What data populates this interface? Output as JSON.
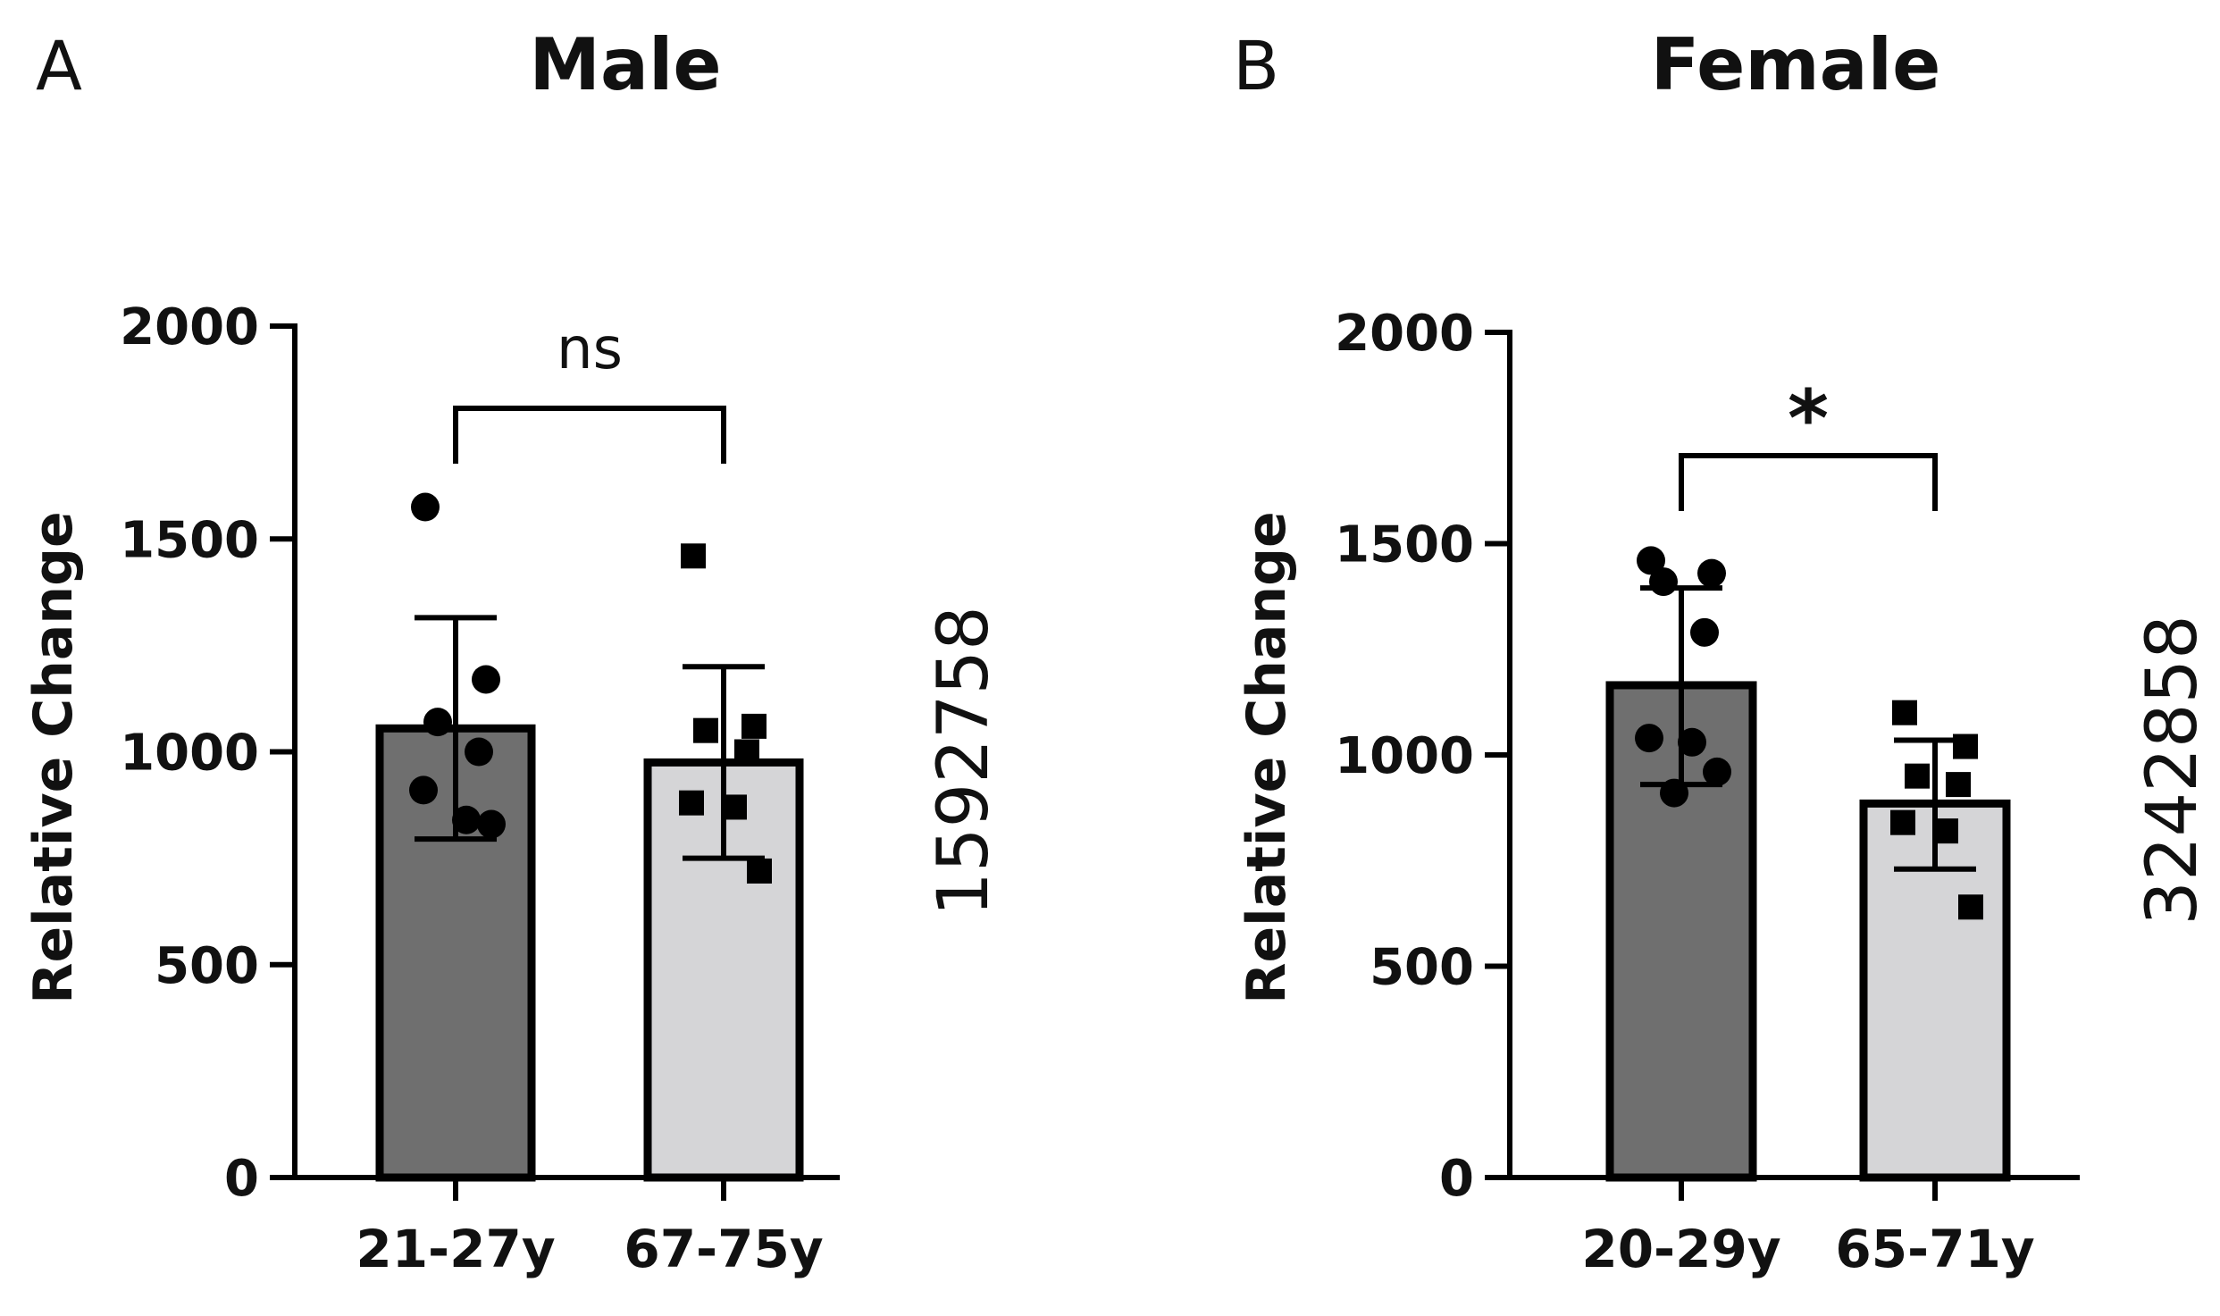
{
  "chart_data": [
    {
      "type": "bar",
      "panel_letter": "A",
      "title": "Male",
      "ylabel": "Relative Change",
      "xlabel": "",
      "ylim": [
        0,
        2000
      ],
      "yticks": [
        "0",
        "500",
        "1000",
        "1500",
        "2000"
      ],
      "categories": [
        "21-27y",
        "67-75y"
      ],
      "values": [
        1055,
        975
      ],
      "error_bars": [
        [
          795,
          1315
        ],
        [
          750,
          1200
        ]
      ],
      "bar_colors": [
        "#6f6f6f",
        "#d5d5d7"
      ],
      "marker_shapes": [
        "circle",
        "square"
      ],
      "points": [
        [
          1575,
          1170,
          1070,
          1000,
          910,
          840,
          830
        ],
        [
          1460,
          1060,
          1050,
          1000,
          880,
          870,
          720
        ]
      ],
      "significance": {
        "label": "ns",
        "between": [
          "21-27y",
          "67-75y"
        ]
      },
      "side_label": "1592758"
    },
    {
      "type": "bar",
      "panel_letter": "B",
      "title": "Female",
      "ylabel": "Relative Change",
      "xlabel": "",
      "ylim": [
        0,
        2000
      ],
      "yticks": [
        "0",
        "500",
        "1000",
        "1500",
        "2000"
      ],
      "categories": [
        "20-29y",
        "65-71y"
      ],
      "values": [
        1165,
        885
      ],
      "error_bars": [
        [
          930,
          1395
        ],
        [
          730,
          1035
        ]
      ],
      "bar_colors": [
        "#6f6f6f",
        "#d5d5d7"
      ],
      "marker_shapes": [
        "circle",
        "square"
      ],
      "points": [
        [
          1460,
          1430,
          1410,
          1290,
          1040,
          1030,
          960,
          910
        ],
        [
          1100,
          1020,
          950,
          930,
          840,
          820,
          640
        ]
      ],
      "significance": {
        "label": "*",
        "between": [
          "20-29y",
          "65-71y"
        ]
      },
      "side_label": "3242858"
    }
  ]
}
